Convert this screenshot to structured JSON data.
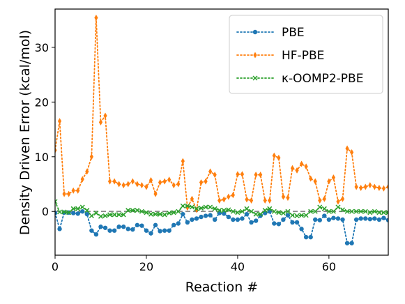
{
  "chart_data": {
    "type": "line",
    "xlabel": "Reaction #",
    "ylabel": "Density Driven Error (kcal/mol)",
    "xlim": [
      0,
      73
    ],
    "ylim": [
      -8,
      37
    ],
    "xticks": [
      "0",
      "20",
      "40",
      "60"
    ],
    "yticks": [
      "0",
      "10",
      "20",
      "30"
    ],
    "reference_line": {
      "y": 0,
      "color": "#888888",
      "style": "dashed"
    },
    "legend_position": "top-right",
    "grid": false,
    "series": [
      {
        "name": "PBE",
        "legend_label": "PBE",
        "color": "#1f77b4",
        "marker": "circle",
        "values": [
          -0.3,
          -3.2,
          -0.2,
          -0.2,
          -0.3,
          -0.4,
          0.0,
          -0.5,
          -3.5,
          -4.2,
          -2.8,
          -3.0,
          -3.5,
          -3.5,
          -2.8,
          -2.8,
          -3.2,
          -3.3,
          -2.5,
          -2.6,
          -3.5,
          -4.0,
          -2.5,
          -3.6,
          -3.5,
          -3.5,
          -2.5,
          -2.2,
          -0.5,
          -2.0,
          -1.5,
          -1.3,
          -1.0,
          -0.8,
          -0.7,
          -1.5,
          -0.3,
          -0.4,
          -1.0,
          -1.5,
          -1.5,
          -1.3,
          -0.5,
          -2.0,
          -1.7,
          -0.8,
          -0.3,
          0.0,
          -2.2,
          -2.3,
          -1.5,
          -0.7,
          -2.0,
          -2.0,
          -3.2,
          -4.7,
          -4.7,
          -1.5,
          -1.6,
          -0.8,
          -1.5,
          -1.2,
          -1.3,
          -1.5,
          -5.8,
          -5.8,
          -1.5,
          -1.3,
          -1.3,
          -1.4,
          -1.3,
          -1.5,
          -1.2,
          -1.6
        ]
      },
      {
        "name": "HF-PBE",
        "legend_label": "HF-PBE",
        "color": "#ff7f0e",
        "marker": "thin_diamond",
        "values": [
          11.2,
          16.5,
          3.2,
          3.2,
          3.8,
          3.8,
          5.9,
          7.3,
          10.0,
          35.4,
          16.3,
          17.5,
          5.5,
          5.5,
          5.0,
          4.8,
          5.0,
          5.5,
          5.0,
          4.8,
          4.5,
          5.7,
          3.2,
          5.3,
          5.5,
          5.8,
          4.8,
          5.0,
          9.2,
          0.7,
          2.3,
          0.3,
          5.3,
          5.5,
          7.3,
          6.7,
          2.0,
          2.2,
          2.7,
          3.0,
          6.8,
          6.8,
          2.2,
          2.0,
          6.7,
          6.7,
          2.0,
          2.0,
          10.2,
          9.8,
          2.7,
          2.5,
          7.9,
          7.5,
          8.7,
          8.2,
          6.0,
          5.5,
          2.0,
          2.3,
          5.5,
          6.2,
          1.8,
          2.3,
          11.5,
          10.8,
          4.5,
          4.3,
          4.5,
          4.8,
          4.5,
          4.3,
          4.2,
          4.5
        ]
      },
      {
        "name": "κ-OOMP2-PBE",
        "legend_label": "κ-OOMP2-PBE",
        "color": "#2ca02c",
        "marker": "x",
        "values": [
          1.8,
          -0.1,
          -0.1,
          -0.2,
          0.5,
          0.5,
          0.8,
          0.2,
          -0.8,
          -0.3,
          -0.9,
          -0.8,
          -0.6,
          -0.6,
          -0.6,
          -0.6,
          0.2,
          0.2,
          0.2,
          0.0,
          -0.2,
          -0.5,
          -0.5,
          -0.5,
          -0.6,
          -0.3,
          -0.2,
          0.0,
          1.0,
          1.0,
          0.8,
          0.5,
          0.6,
          0.8,
          0.8,
          0.5,
          0.2,
          0.2,
          0.3,
          0.0,
          -0.2,
          0.0,
          0.5,
          0.0,
          -0.5,
          -0.5,
          0.2,
          0.5,
          0.0,
          -0.2,
          -0.3,
          0.0,
          -0.7,
          -0.8,
          -0.7,
          -0.7,
          0.0,
          0.0,
          0.8,
          0.5,
          0.0,
          0.0,
          0.8,
          0.3,
          0.0,
          0.0,
          0.0,
          0.0,
          0.0,
          -0.2,
          0.0,
          -0.2,
          -0.2,
          -0.2
        ]
      }
    ]
  }
}
